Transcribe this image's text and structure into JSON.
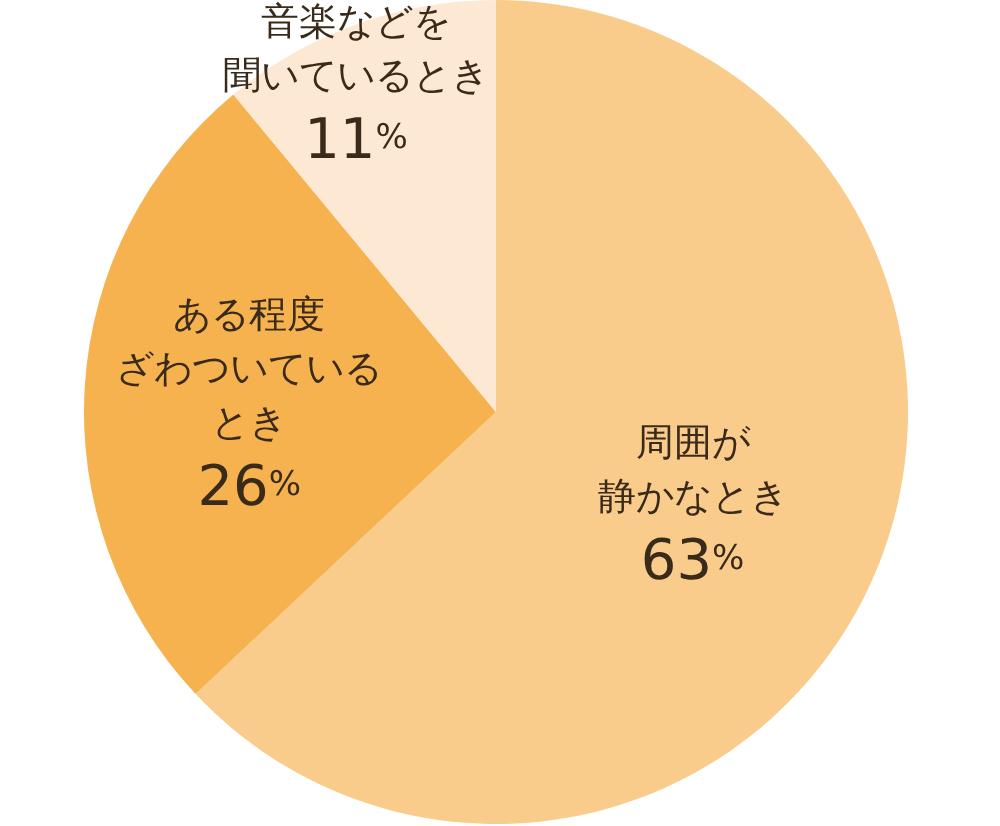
{
  "chart_data": {
    "type": "pie",
    "categories": [
      "周囲が静かなとき",
      "ある程度ざわついているとき",
      "音楽などを聞いているとき"
    ],
    "values": [
      63,
      26,
      11
    ],
    "value_labels": [
      "63%",
      "26%",
      "11%"
    ],
    "colors": [
      "#f9cc8c",
      "#f5b24f",
      "#fde9d3"
    ]
  }
}
